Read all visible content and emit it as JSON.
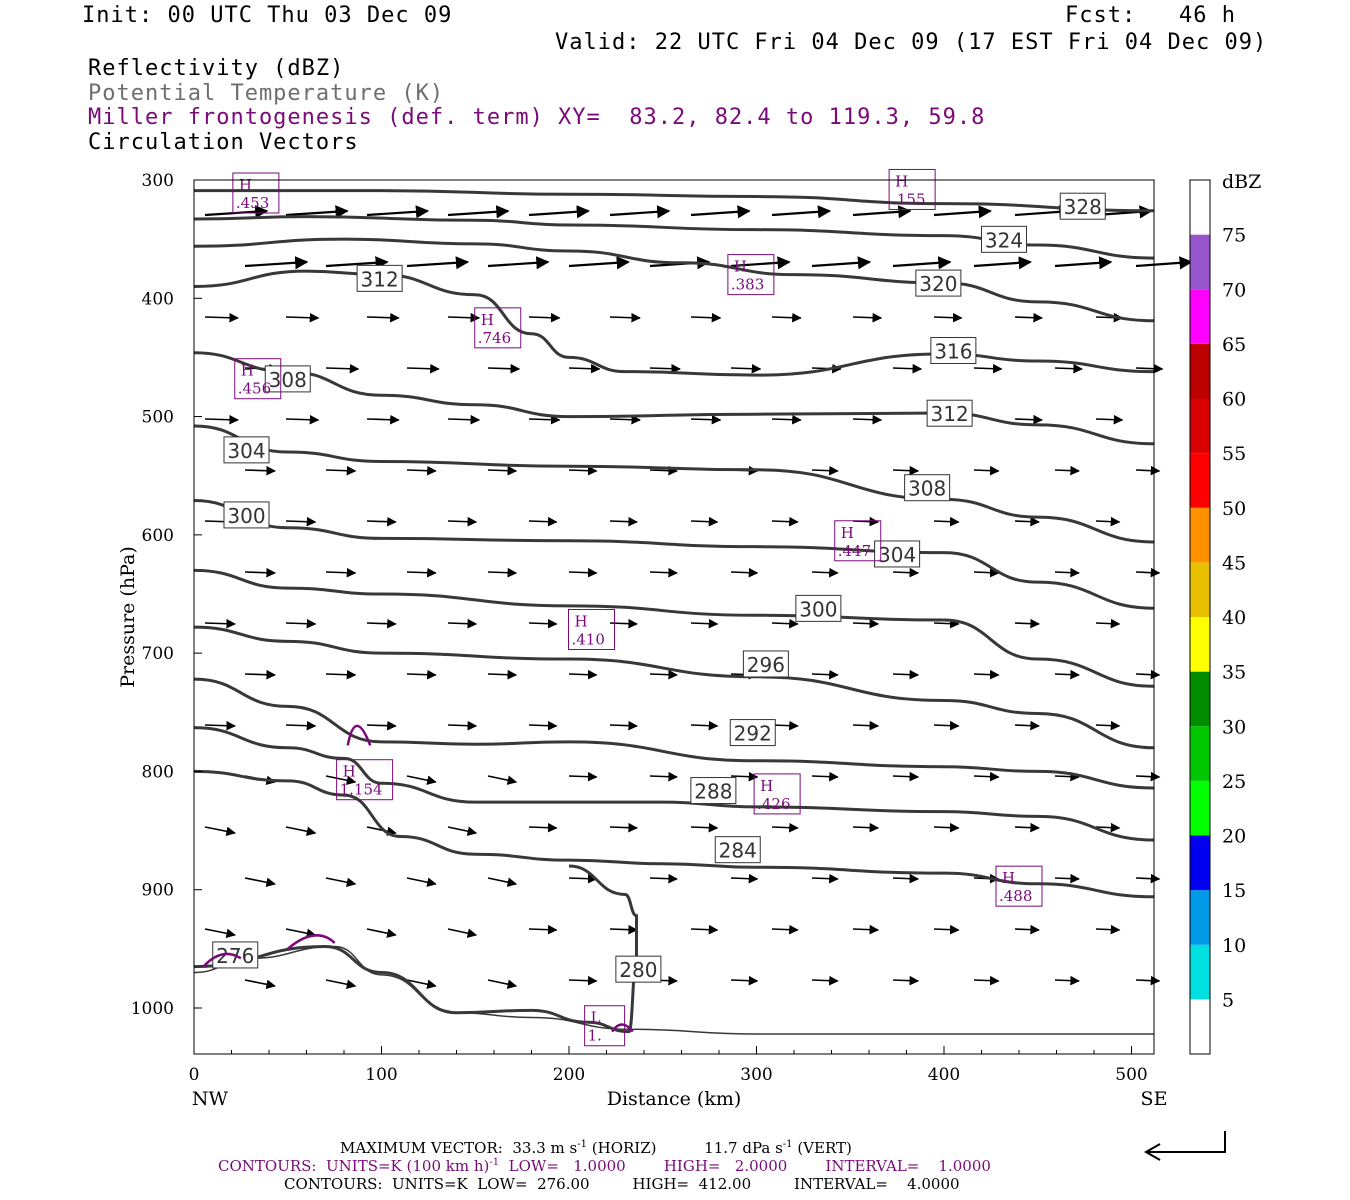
{
  "header": {
    "init": "Init: 00 UTC Thu 03 Dec 09",
    "fcst": "Fcst:   46 h",
    "valid": "Valid: 22 UTC Fri 04 Dec 09 (17 EST Fri 04 Dec 09)",
    "field1": "Reflectivity (dBZ)",
    "field2": "Potential Temperature (K)",
    "field3": "Miller frontogenesis (def. term)",
    "xy": "XY=  83.2, 82.4 to 119.3, 59.8",
    "field4": "Circulation Vectors"
  },
  "colors": {
    "theta": "#383838",
    "fronto": "#7a0a7a",
    "vectors": "#000000"
  },
  "chart_data": {
    "type": "cross-section",
    "xlabel": "Distance (km)",
    "ylabel": "Pressure (hPa)",
    "xlim": [
      0,
      512
    ],
    "ylim": [
      1040,
      300
    ],
    "xticks": [
      "0",
      "100",
      "200",
      "300",
      "400",
      "500"
    ],
    "yticks": [
      "300",
      "400",
      "500",
      "600",
      "700",
      "800",
      "900",
      "1000"
    ],
    "left_end": "NW",
    "right_end": "SE",
    "theta_contours": [
      {
        "label": "328",
        "lx": 474,
        "lp": 323,
        "points": [
          [
            0,
            309
          ],
          [
            100,
            309
          ],
          [
            200,
            312
          ],
          [
            300,
            314
          ],
          [
            400,
            320
          ],
          [
            512,
            326
          ]
        ]
      },
      {
        "label": "324",
        "lx": 432,
        "lp": 351,
        "points": [
          [
            0,
            333
          ],
          [
            60,
            331
          ],
          [
            150,
            334
          ],
          [
            200,
            338
          ],
          [
            300,
            342
          ],
          [
            400,
            347
          ],
          [
            450,
            355
          ],
          [
            512,
            366
          ]
        ]
      },
      {
        "label": "320",
        "lx": 397,
        "lp": 388,
        "points": [
          [
            0,
            356
          ],
          [
            80,
            350
          ],
          [
            150,
            354
          ],
          [
            200,
            360
          ],
          [
            260,
            370
          ],
          [
            320,
            380
          ],
          [
            400,
            387
          ],
          [
            450,
            403
          ],
          [
            512,
            419
          ]
        ]
      },
      {
        "label": "316",
        "lx": 405,
        "lp": 445,
        "points": [
          [
            0,
            390
          ],
          [
            60,
            377
          ],
          [
            100,
            380
          ],
          [
            150,
            397
          ],
          [
            180,
            430
          ],
          [
            200,
            450
          ],
          [
            230,
            462
          ],
          [
            300,
            465
          ],
          [
            400,
            447
          ],
          [
            450,
            453
          ],
          [
            512,
            462
          ]
        ]
      },
      {
        "label": "312",
        "lx": 403,
        "lp": 498,
        "lx2": 99,
        "lp2": 384,
        "points": [
          [
            0,
            446
          ],
          [
            50,
            462
          ],
          [
            100,
            482
          ],
          [
            150,
            490
          ],
          [
            200,
            500
          ],
          [
            300,
            498
          ],
          [
            400,
            497
          ],
          [
            450,
            507
          ],
          [
            512,
            523
          ]
        ]
      },
      {
        "label": "308",
        "lx": 391,
        "lp": 561,
        "lx2": 50,
        "lp2": 469,
        "points": [
          [
            0,
            508
          ],
          [
            50,
            530
          ],
          [
            100,
            538
          ],
          [
            200,
            542
          ],
          [
            300,
            545
          ],
          [
            400,
            570
          ],
          [
            450,
            585
          ],
          [
            512,
            606
          ]
        ]
      },
      {
        "label": "304",
        "lx": 375,
        "lp": 617,
        "lx2": 28,
        "lp2": 529,
        "points": [
          [
            0,
            571
          ],
          [
            50,
            594
          ],
          [
            100,
            603
          ],
          [
            200,
            605
          ],
          [
            300,
            610
          ],
          [
            400,
            615
          ],
          [
            450,
            640
          ],
          [
            512,
            662
          ]
        ]
      },
      {
        "label": "300",
        "lx": 333,
        "lp": 663,
        "lx2": 28,
        "lp2": 584,
        "points": [
          [
            0,
            630
          ],
          [
            50,
            645
          ],
          [
            100,
            650
          ],
          [
            200,
            660
          ],
          [
            300,
            668
          ],
          [
            400,
            672
          ],
          [
            450,
            705
          ],
          [
            512,
            728
          ]
        ]
      },
      {
        "label": "296",
        "lx": 305,
        "lp": 710,
        "points": [
          [
            0,
            678
          ],
          [
            50,
            690
          ],
          [
            100,
            700
          ],
          [
            200,
            705
          ],
          [
            300,
            720
          ],
          [
            400,
            740
          ],
          [
            450,
            751
          ],
          [
            512,
            780
          ]
        ]
      },
      {
        "label": "292",
        "lx": 298,
        "lp": 768,
        "points": [
          [
            0,
            722
          ],
          [
            50,
            745
          ],
          [
            100,
            775
          ],
          [
            150,
            777
          ],
          [
            200,
            775
          ],
          [
            300,
            791
          ],
          [
            400,
            796
          ],
          [
            450,
            800
          ],
          [
            512,
            814
          ]
        ]
      },
      {
        "label": "288",
        "lx": 277,
        "lp": 817,
        "points": [
          [
            0,
            763
          ],
          [
            50,
            780
          ],
          [
            80,
            789
          ],
          [
            100,
            810
          ],
          [
            150,
            826
          ],
          [
            250,
            826
          ],
          [
            300,
            830
          ],
          [
            400,
            834
          ],
          [
            450,
            838
          ],
          [
            512,
            858
          ]
        ]
      },
      {
        "label": "284",
        "lx": 290,
        "lp": 867,
        "points": [
          [
            0,
            800
          ],
          [
            50,
            808
          ],
          [
            80,
            820
          ],
          [
            110,
            855
          ],
          [
            150,
            870
          ],
          [
            200,
            875
          ],
          [
            250,
            878
          ],
          [
            300,
            881
          ],
          [
            400,
            886
          ],
          [
            450,
            895
          ],
          [
            512,
            906
          ]
        ]
      },
      {
        "label": "280",
        "lx": 237,
        "lp": 968,
        "points": [
          [
            0,
            965
          ],
          [
            70,
            948
          ],
          [
            100,
            970
          ],
          [
            140,
            1004
          ],
          [
            180,
            1002
          ],
          [
            210,
            1012
          ],
          [
            232,
            1020
          ],
          [
            236,
            960
          ],
          [
            236,
            922
          ],
          [
            230,
            904
          ],
          [
            200,
            880
          ]
        ]
      },
      {
        "label": "276",
        "lx": 22,
        "lp": 956,
        "points": [
          [
            0,
            970
          ],
          [
            30,
            958
          ],
          [
            75,
            948
          ],
          [
            100,
            972
          ],
          [
            140,
            1004
          ],
          [
            180,
            1008
          ],
          [
            232,
            1018
          ],
          [
            300,
            1022
          ],
          [
            400,
            1022
          ],
          [
            512,
            1022
          ]
        ],
        "thin": true
      }
    ],
    "frontogenesis_maxima": [
      {
        "label": "H",
        "value": ".453",
        "x": 33,
        "p": 311
      },
      {
        "label": "H",
        "value": ".155",
        "x": 383,
        "p": 308
      },
      {
        "label": "H",
        "value": ".383",
        "x": 297,
        "p": 380
      },
      {
        "label": "H",
        "value": ".746",
        "x": 162,
        "p": 425
      },
      {
        "label": "H",
        "value": ".456",
        "x": 34,
        "p": 468
      },
      {
        "label": "H",
        "value": ".447",
        "x": 354,
        "p": 605
      },
      {
        "label": "H",
        "value": ".410",
        "x": 212,
        "p": 680
      },
      {
        "label": "H",
        "value": "1.154",
        "x": 91,
        "p": 807
      },
      {
        "label": "H",
        "value": ".426",
        "x": 311,
        "p": 819
      },
      {
        "label": "H",
        "value": ".488",
        "x": 440,
        "p": 897
      },
      {
        "label": "L",
        "value": "1.",
        "x": 219,
        "p": 1015
      }
    ],
    "circulation_vectors_note": "sampled field of arrows; strongest in upper troposphere",
    "reflectivity_colorbar": {
      "units": "dBZ",
      "levels": [
        "5",
        "10",
        "15",
        "20",
        "25",
        "30",
        "35",
        "40",
        "45",
        "50",
        "55",
        "60",
        "65",
        "70",
        "75"
      ],
      "colors": [
        "#ffffff",
        "#00e0e0",
        "#0099e8",
        "#0000f0",
        "#00ff00",
        "#00c800",
        "#008c00",
        "#ffff00",
        "#e8c000",
        "#ff9000",
        "#ff0000",
        "#d80000",
        "#bc0000",
        "#ff00ff",
        "#9955cc",
        "#ffffff"
      ]
    }
  },
  "footer": {
    "max_vector": "MAXIMUM VECTOR:  33.3 m s",
    "max_vector_2": "(HORIZ)          11.7 dPa s",
    "max_vector_3": "(VERT)",
    "contours_purple": "CONTOURS:  UNITS=K (100 km h)",
    "contours_purple_2": "LOW=   1.0000        HIGH=   2.0000        INTERVAL=    1.0000",
    "contours_black": "CONTOURS:  UNITS=K  LOW=  276.00         HIGH=  412.00         INTERVAL=    4.0000"
  }
}
